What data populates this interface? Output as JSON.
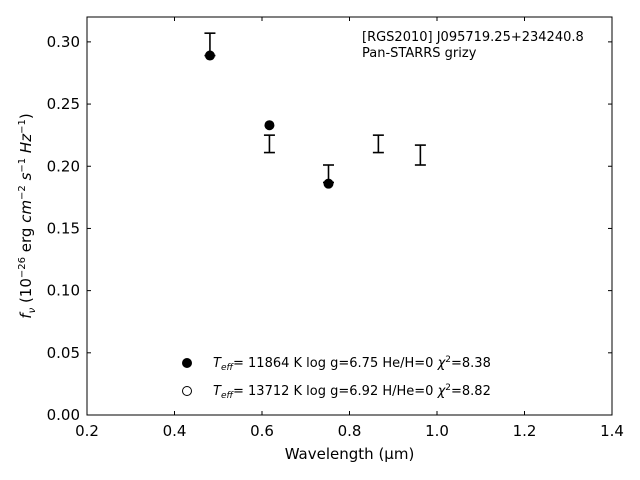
{
  "chart_data": {
    "type": "scatter",
    "xlabel": "Wavelength (μm)",
    "ylabel_parts": [
      "f",
      "ν",
      " (10",
      "−26",
      " erg ",
      "cm",
      "−2",
      " ",
      "s",
      "−1",
      " ",
      "Hz",
      "−1",
      ")"
    ],
    "xlim": [
      0.2,
      1.4
    ],
    "ylim": [
      0.0,
      0.32
    ],
    "xticks": [
      0.2,
      0.4,
      0.6,
      0.8,
      1.0,
      1.2,
      1.4
    ],
    "xtick_labels": [
      "0.2",
      "0.4",
      "0.6",
      "0.8",
      "1.0",
      "1.2",
      "1.4"
    ],
    "yticks": [
      0.0,
      0.05,
      0.1,
      0.15,
      0.2,
      0.25,
      0.3
    ],
    "ytick_labels": [
      "0.00",
      "0.05",
      "0.10",
      "0.15",
      "0.20",
      "0.25",
      "0.30"
    ],
    "annotation_lines": [
      "[RGS2010] J095719.25+234240.8",
      "Pan-STARRS grizy"
    ],
    "observed": [
      {
        "x": 0.481,
        "y": 0.298,
        "err": 0.009
      },
      {
        "x": 0.617,
        "y": 0.218,
        "err": 0.007
      },
      {
        "x": 0.752,
        "y": 0.194,
        "err": 0.007
      },
      {
        "x": 0.866,
        "y": 0.218,
        "err": 0.007
      },
      {
        "x": 0.962,
        "y": 0.209,
        "err": 0.008
      }
    ],
    "series": [
      {
        "style": "filled",
        "points": [
          {
            "x": 0.481,
            "y": 0.289
          },
          {
            "x": 0.617,
            "y": 0.233
          },
          {
            "x": 0.752,
            "y": 0.186
          }
        ],
        "legend": {
          "t": "T",
          "sub": "eff",
          "a": "= 11864 K  log g=6.75  He/H=0  ",
          "chi": "χ",
          "sup": "2",
          "b": "=8.38"
        }
      },
      {
        "style": "open",
        "points": [],
        "legend": {
          "t": "T",
          "sub": "eff",
          "a": "= 13712 K  log g=6.92  H/He=0  ",
          "chi": "χ",
          "sup": "2",
          "b": "=8.82"
        }
      }
    ]
  }
}
